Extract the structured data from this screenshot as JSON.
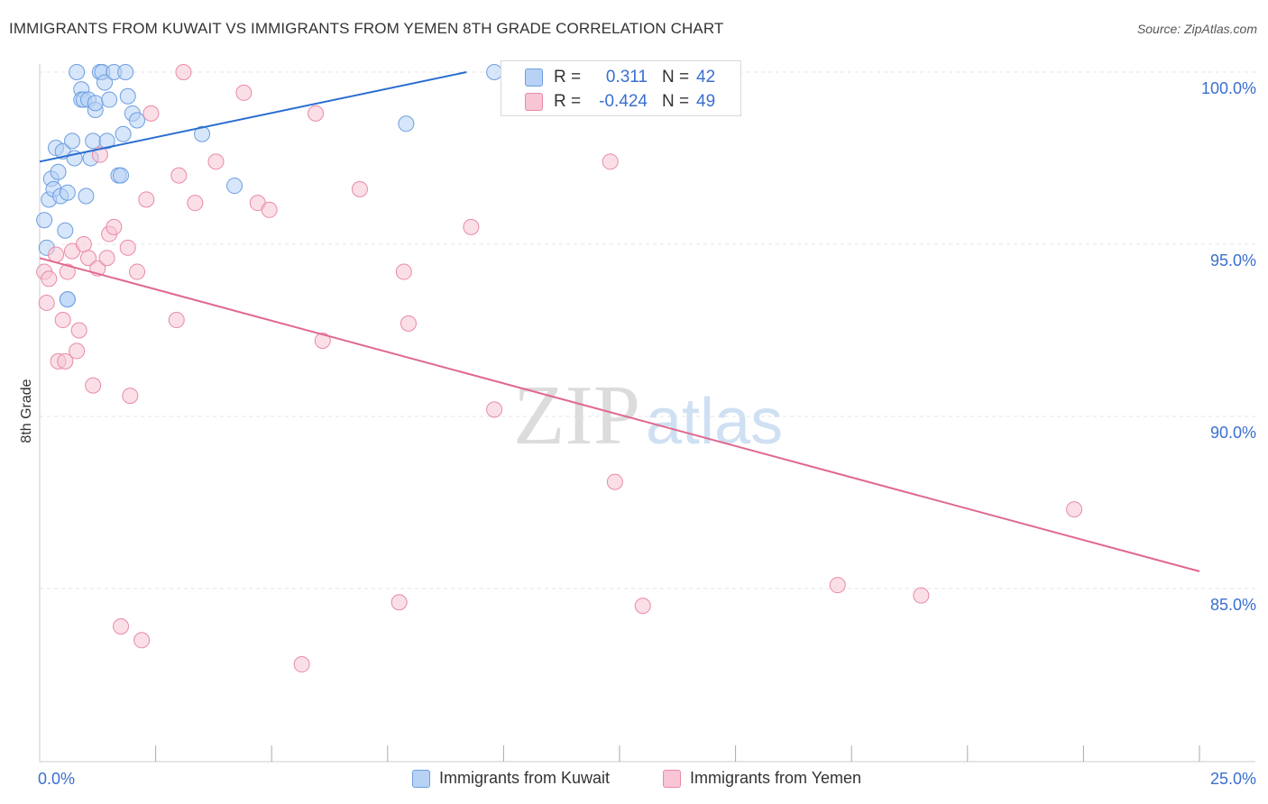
{
  "title": "IMMIGRANTS FROM KUWAIT VS IMMIGRANTS FROM YEMEN 8TH GRADE CORRELATION CHART",
  "source": "Source: ZipAtlas.com",
  "watermark": {
    "zip": "ZIP",
    "atlas": "atlas"
  },
  "colors": {
    "blue_fill": "#b7d2f5",
    "blue_stroke": "#6d9ee0",
    "blue_line": "#2a6ecf",
    "pink_fill": "#f8c5d4",
    "pink_stroke": "#e88aa6",
    "pink_line": "#e0688f",
    "axis_text": "#3a6fd0",
    "grid": "#e6e6e6"
  },
  "stats": {
    "kuwait": {
      "r_label": "R =",
      "r": "0.311",
      "n_label": "N =",
      "n": "42"
    },
    "yemen": {
      "r_label": "R =",
      "r": "-0.424",
      "n_label": "N =",
      "n": "49"
    }
  },
  "legend": {
    "kuwait": "Immigrants from Kuwait",
    "yemen": "Immigrants from Yemen"
  },
  "chart_data": {
    "type": "scatter",
    "title": "IMMIGRANTS FROM KUWAIT VS IMMIGRANTS FROM YEMEN 8TH GRADE CORRELATION CHART",
    "xlabel": "",
    "ylabel": "8th Grade",
    "xlim": [
      0,
      25
    ],
    "ylim": [
      80.5,
      100.5
    ],
    "x_tick_labels": [
      {
        "value": 0,
        "label": "0.0%"
      },
      {
        "value": 25,
        "label": "25.0%"
      }
    ],
    "x_minor_ticks": [
      2.5,
      5,
      7.5,
      10,
      12.5,
      15,
      17.5,
      20,
      22.5,
      25
    ],
    "y_ticks": [
      {
        "value": 85,
        "label": "85.0%"
      },
      {
        "value": 90,
        "label": "90.0%"
      },
      {
        "value": 95,
        "label": "95.0%"
      },
      {
        "value": 100,
        "label": "100.0%"
      }
    ],
    "grid": true,
    "series": [
      {
        "name": "Immigrants from Kuwait",
        "color": "blue",
        "points": [
          [
            0.1,
            95.7
          ],
          [
            0.15,
            94.9
          ],
          [
            0.2,
            96.3
          ],
          [
            0.25,
            96.9
          ],
          [
            0.3,
            96.6
          ],
          [
            0.35,
            97.8
          ],
          [
            0.4,
            97.1
          ],
          [
            0.45,
            96.4
          ],
          [
            0.5,
            97.7
          ],
          [
            0.55,
            95.4
          ],
          [
            0.6,
            96.5
          ],
          [
            0.6,
            93.4
          ],
          [
            0.6,
            93.4
          ],
          [
            0.7,
            98.0
          ],
          [
            0.75,
            97.5
          ],
          [
            0.8,
            100.0
          ],
          [
            0.9,
            99.5
          ],
          [
            0.9,
            99.2
          ],
          [
            0.95,
            99.2
          ],
          [
            1.0,
            96.4
          ],
          [
            1.05,
            99.2
          ],
          [
            1.1,
            97.5
          ],
          [
            1.15,
            98.0
          ],
          [
            1.2,
            98.9
          ],
          [
            1.2,
            99.1
          ],
          [
            1.3,
            100.0
          ],
          [
            1.35,
            100.0
          ],
          [
            1.4,
            99.7
          ],
          [
            1.45,
            98.0
          ],
          [
            1.5,
            99.2
          ],
          [
            1.6,
            100.0
          ],
          [
            1.7,
            97.0
          ],
          [
            1.75,
            97.0
          ],
          [
            1.8,
            98.2
          ],
          [
            1.85,
            100.0
          ],
          [
            1.9,
            99.3
          ],
          [
            2.0,
            98.8
          ],
          [
            2.1,
            98.6
          ],
          [
            3.5,
            98.2
          ],
          [
            4.2,
            96.7
          ],
          [
            7.9,
            98.5
          ],
          [
            9.8,
            100.0
          ]
        ],
        "trend": {
          "x": [
            0,
            9.2
          ],
          "y": [
            97.4,
            100.0
          ]
        }
      },
      {
        "name": "Immigrants from Yemen",
        "color": "pink",
        "points": [
          [
            0.1,
            94.2
          ],
          [
            0.15,
            93.3
          ],
          [
            0.2,
            94.0
          ],
          [
            0.35,
            94.7
          ],
          [
            0.4,
            91.6
          ],
          [
            0.5,
            92.8
          ],
          [
            0.55,
            91.6
          ],
          [
            0.6,
            94.2
          ],
          [
            0.7,
            94.8
          ],
          [
            0.8,
            91.9
          ],
          [
            0.85,
            92.5
          ],
          [
            0.95,
            95.0
          ],
          [
            1.05,
            94.6
          ],
          [
            1.15,
            90.9
          ],
          [
            1.25,
            94.3
          ],
          [
            1.3,
            97.6
          ],
          [
            1.45,
            94.6
          ],
          [
            1.5,
            95.3
          ],
          [
            1.6,
            95.5
          ],
          [
            1.75,
            83.9
          ],
          [
            1.9,
            94.9
          ],
          [
            1.95,
            90.6
          ],
          [
            2.1,
            94.2
          ],
          [
            2.2,
            83.5
          ],
          [
            2.3,
            96.3
          ],
          [
            2.4,
            98.8
          ],
          [
            2.95,
            92.8
          ],
          [
            3.0,
            97.0
          ],
          [
            3.1,
            100.0
          ],
          [
            3.35,
            96.2
          ],
          [
            3.8,
            97.4
          ],
          [
            4.4,
            99.4
          ],
          [
            4.7,
            96.2
          ],
          [
            4.95,
            96.0
          ],
          [
            5.65,
            82.8
          ],
          [
            5.95,
            98.8
          ],
          [
            6.1,
            92.2
          ],
          [
            6.9,
            96.6
          ],
          [
            7.75,
            84.6
          ],
          [
            7.85,
            94.2
          ],
          [
            7.95,
            92.7
          ],
          [
            9.3,
            95.5
          ],
          [
            9.8,
            90.2
          ],
          [
            12.3,
            97.4
          ],
          [
            12.4,
            88.1
          ],
          [
            13.0,
            84.5
          ],
          [
            17.2,
            85.1
          ],
          [
            19.0,
            84.8
          ],
          [
            22.3,
            87.3
          ]
        ],
        "trend": {
          "x": [
            0,
            25
          ],
          "y": [
            94.6,
            85.5
          ]
        }
      }
    ]
  }
}
